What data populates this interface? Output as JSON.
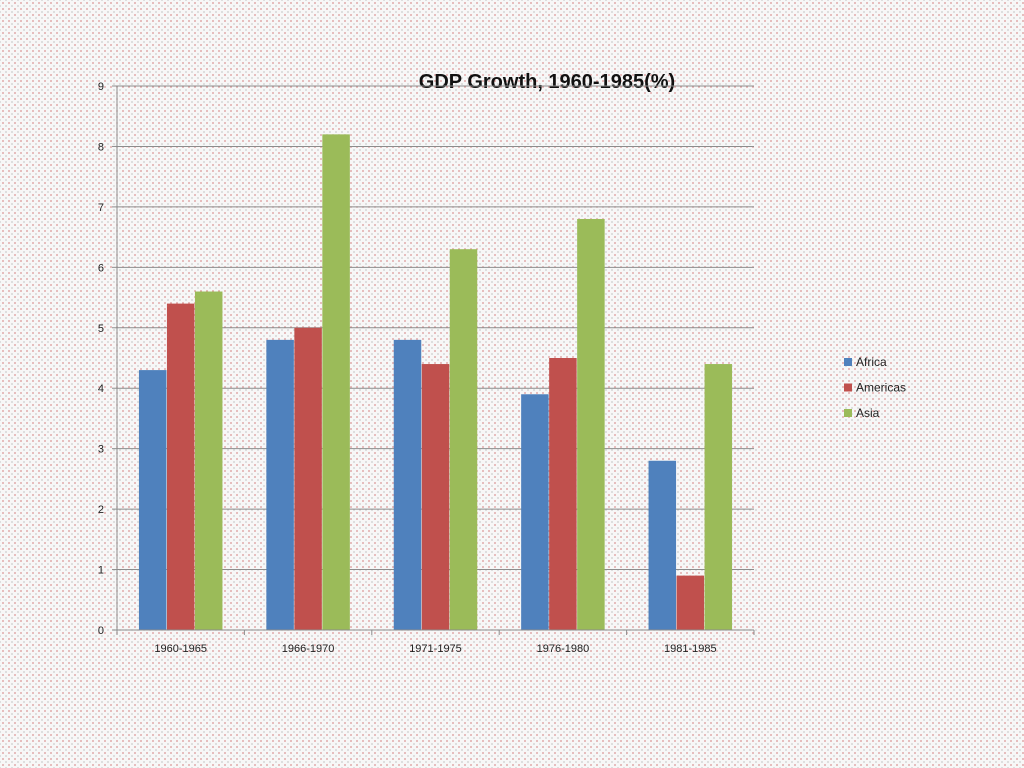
{
  "chart_data": {
    "type": "bar",
    "title": "GDP Growth, 1960-1985(%)",
    "categories": [
      "1960-1965",
      "1966-1970",
      "1971-1975",
      "1976-1980",
      "1981-1985"
    ],
    "series": [
      {
        "name": "Africa",
        "color": "#4f81bd",
        "values": [
          4.3,
          4.8,
          4.8,
          3.9,
          2.8
        ]
      },
      {
        "name": "Americas",
        "color": "#c0504d",
        "values": [
          5.4,
          5.0,
          4.4,
          4.5,
          0.9
        ]
      },
      {
        "name": "Asia",
        "color": "#9bbb59",
        "values": [
          5.6,
          8.2,
          6.3,
          6.8,
          4.4
        ]
      }
    ],
    "ylim": [
      0,
      9
    ],
    "yticks": [
      0,
      1,
      2,
      3,
      4,
      5,
      6,
      7,
      8,
      9
    ],
    "grid": true,
    "legend": "right"
  }
}
